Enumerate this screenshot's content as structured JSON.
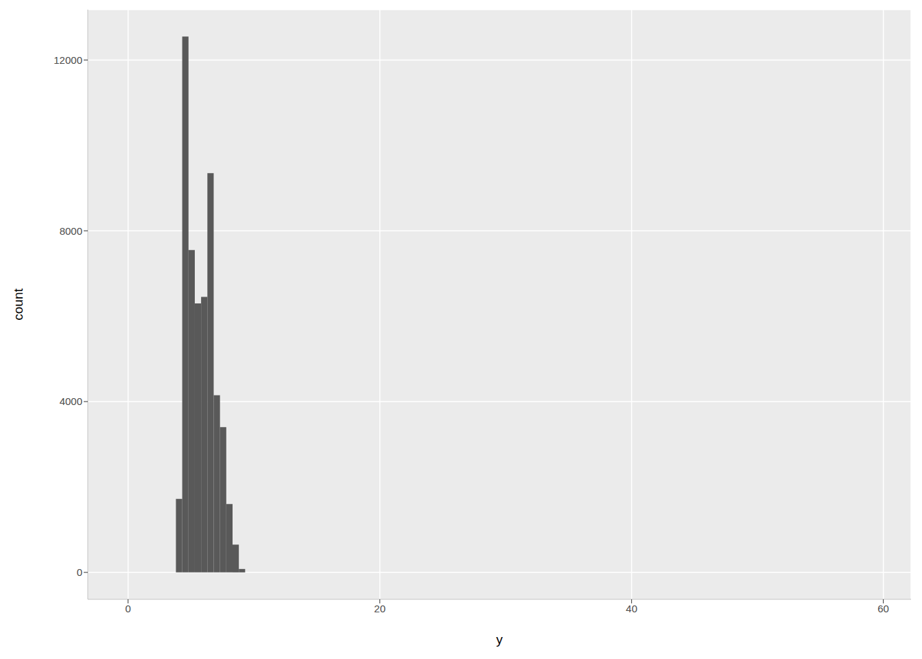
{
  "chart_data": {
    "type": "histogram",
    "x_label": "y",
    "y_label": "count",
    "bins": [
      3.8,
      4.3,
      4.8,
      5.3,
      5.8,
      6.3,
      6.8,
      7.3,
      7.8,
      8.3,
      8.8,
      9.3
    ],
    "counts": [
      1720,
      12550,
      7550,
      6300,
      6450,
      9350,
      4150,
      3400,
      1600,
      650,
      80
    ],
    "color": "#595959",
    "xlim": [
      -3.2,
      62.2
    ],
    "xticks": [
      0,
      20,
      40,
      60
    ],
    "ylim": [
      -630,
      13180
    ],
    "yticks": [
      0,
      4000,
      8000,
      12000
    ],
    "grid": true
  }
}
